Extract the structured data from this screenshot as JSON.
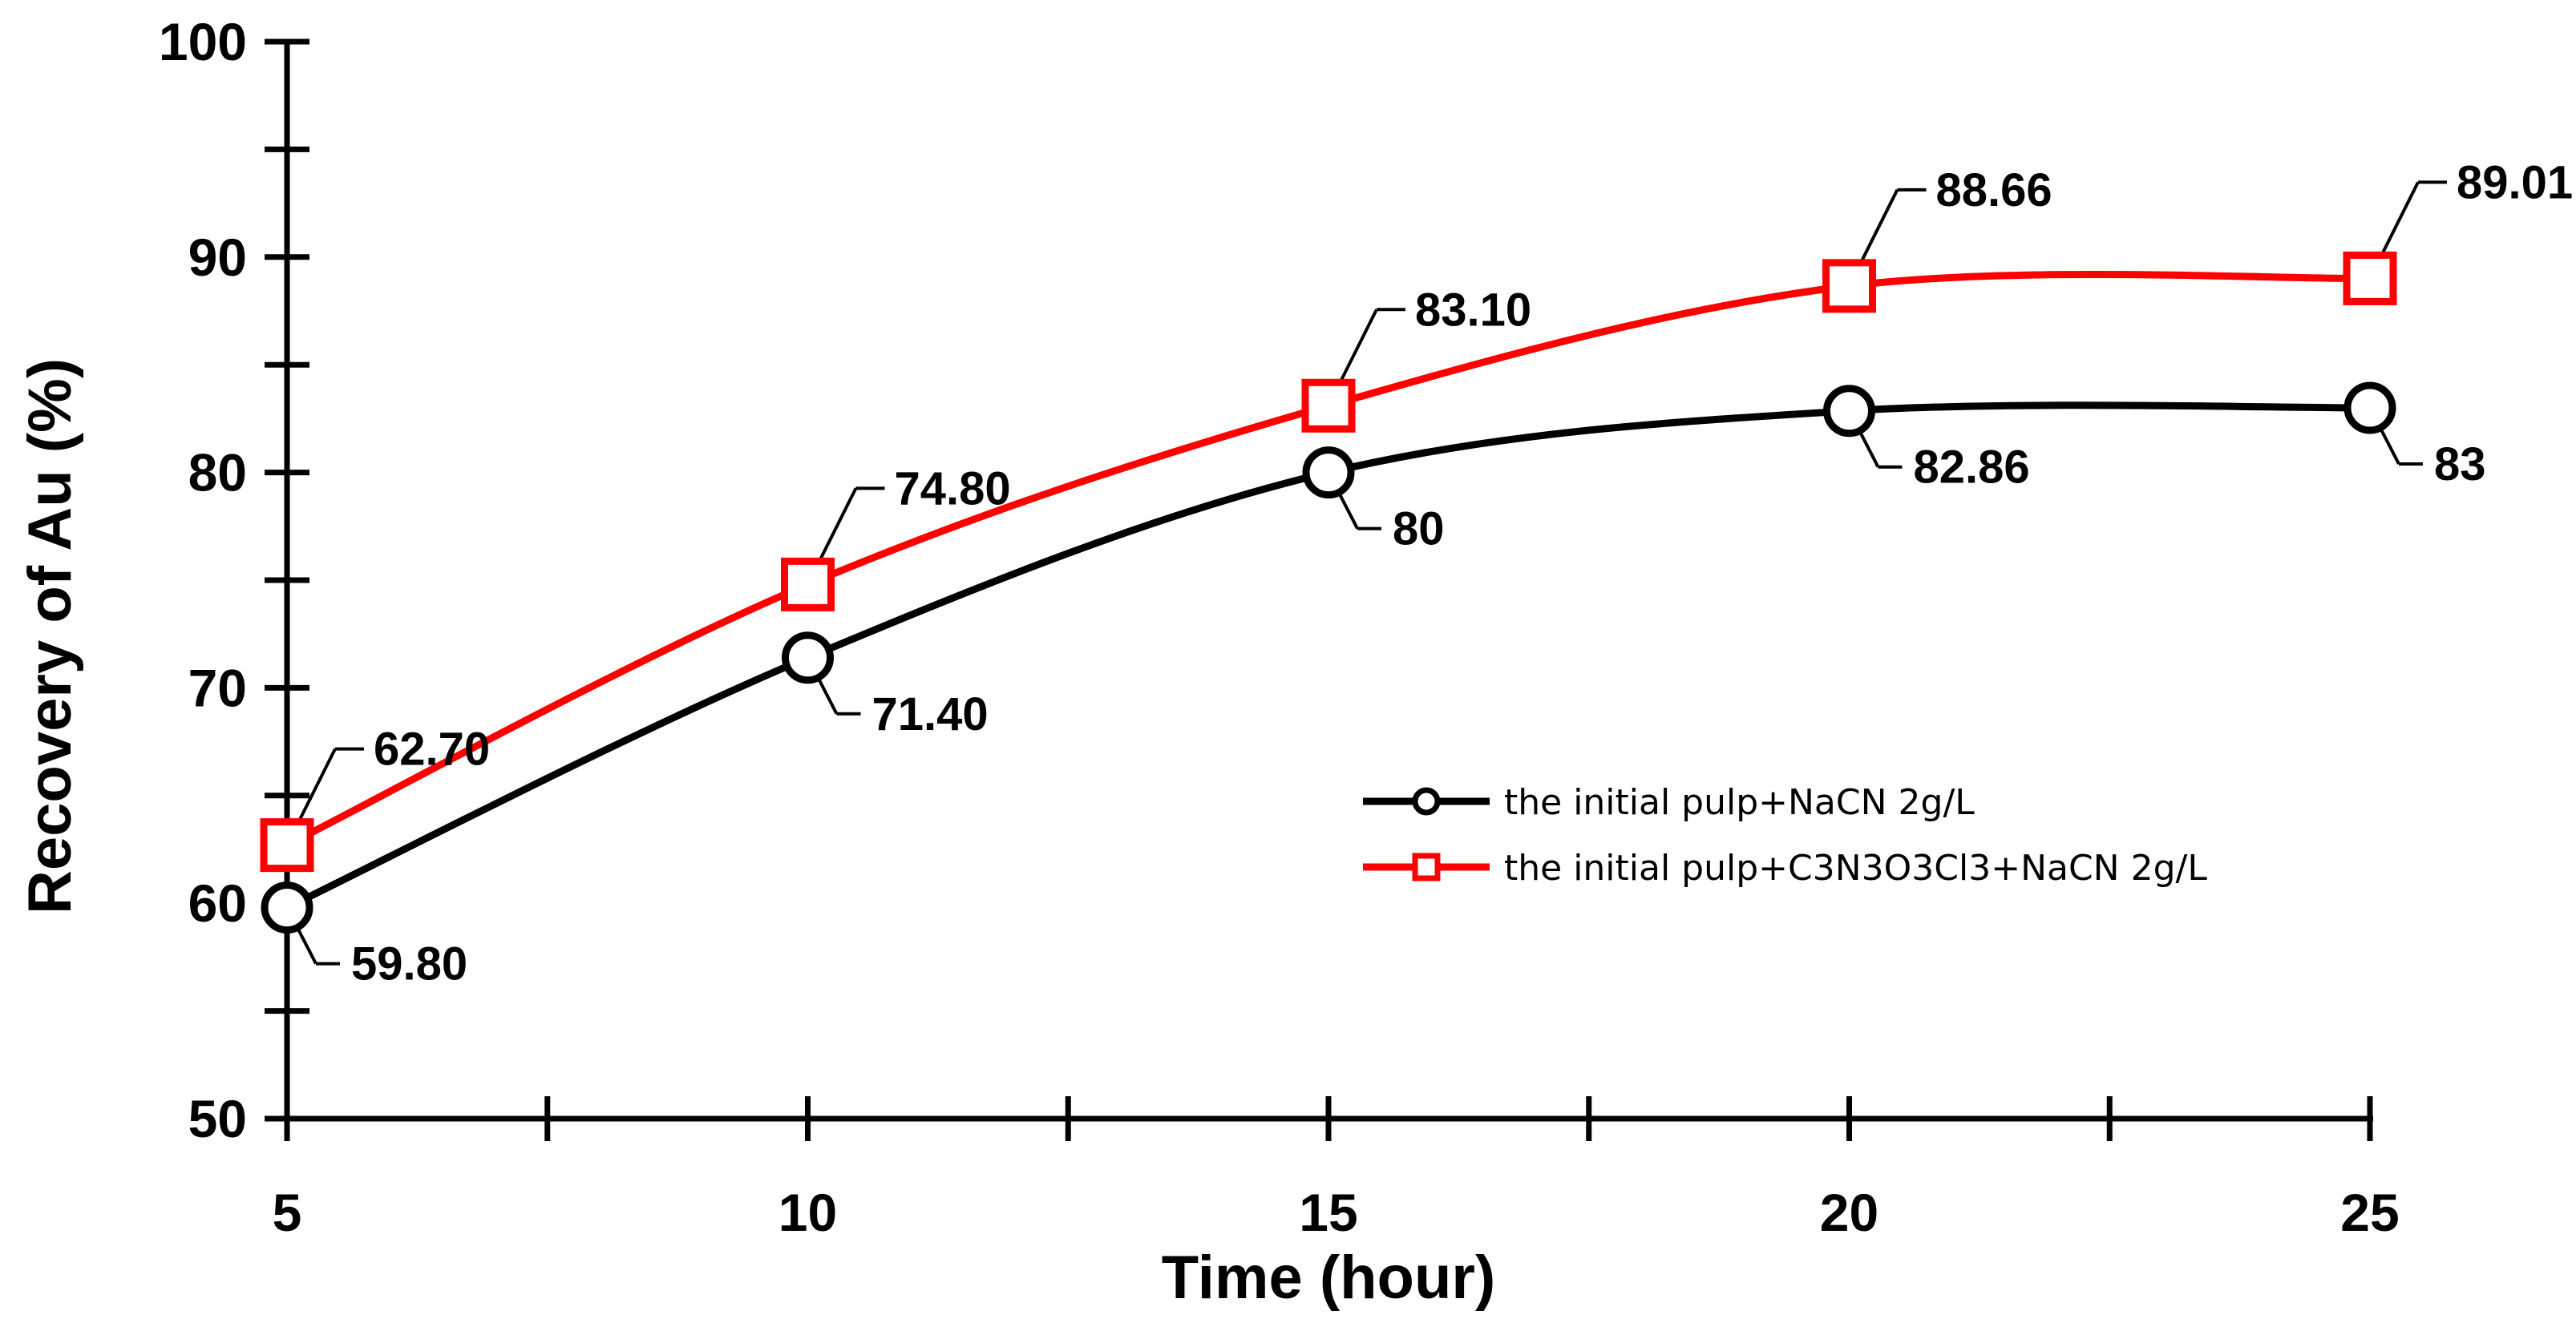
{
  "chart_data": {
    "type": "line",
    "title": "",
    "xlabel": "Time (hour)",
    "ylabel": "Recovery of Au (%)",
    "xlim": [
      5,
      25
    ],
    "ylim": [
      50,
      100
    ],
    "xticks": [
      5,
      10,
      15,
      20,
      25
    ],
    "yticks": [
      50,
      60,
      70,
      80,
      90,
      100
    ],
    "grid": false,
    "smooth": true,
    "legend_position": "center-right",
    "x": [
      5,
      10,
      15,
      20,
      25
    ],
    "series": [
      {
        "name": "the initial pulp+NaCN 2g/L",
        "color": "#000000",
        "marker": "circle",
        "values": [
          59.8,
          71.4,
          80,
          82.86,
          83
        ],
        "labels": [
          "59.80",
          "71.40",
          "80",
          "82.86",
          "83"
        ],
        "label_side": "below"
      },
      {
        "name": "the initial pulp+C3N3O3Cl3+NaCN 2g/L",
        "color": "#ff0000",
        "marker": "square",
        "values": [
          62.7,
          74.8,
          83.1,
          88.66,
          89.01
        ],
        "labels": [
          "62.70",
          "74.80",
          "83.10",
          "88.66",
          "89.01"
        ],
        "label_side": "above"
      }
    ]
  }
}
